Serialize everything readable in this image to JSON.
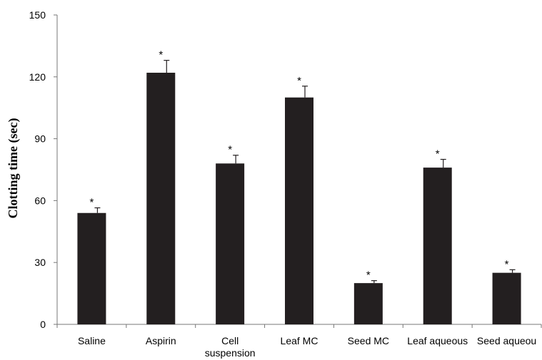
{
  "chart_data": {
    "type": "bar",
    "title": "",
    "xlabel": "",
    "ylabel": "Clotting time (sec)",
    "ylim": [
      0,
      150
    ],
    "yticks": [
      0,
      30,
      60,
      90,
      120,
      150
    ],
    "grid": false,
    "legend": "none",
    "bar_color": "#231f20",
    "categories": [
      [
        "Saline"
      ],
      [
        "Aspirin"
      ],
      [
        "Cell",
        "suspension"
      ],
      [
        "Leaf MC"
      ],
      [
        "Seed MC"
      ],
      [
        "Leaf aqueous"
      ],
      [
        "Seed aqueou"
      ]
    ],
    "values": [
      54,
      122,
      78,
      110,
      20,
      76,
      25
    ],
    "errors": [
      2.5,
      6,
      4,
      5.5,
      1.2,
      4,
      1.5
    ],
    "annotations": [
      "*",
      "*",
      "*",
      "*",
      "*",
      "*",
      "*"
    ]
  }
}
